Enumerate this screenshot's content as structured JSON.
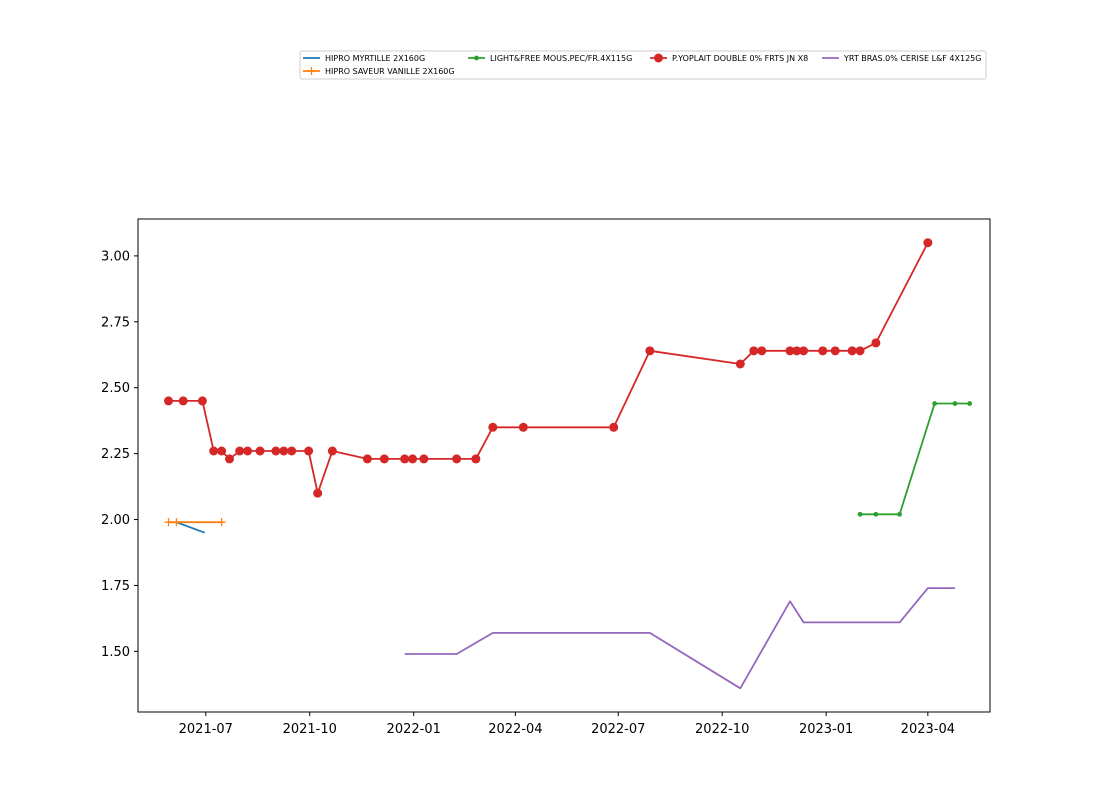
{
  "chart_data": {
    "type": "line",
    "title": "",
    "xlabel": "",
    "ylabel": "",
    "x_axis": {
      "type": "date",
      "range": [
        "2021-05-02",
        "2023-05-26"
      ],
      "ticks": [
        {
          "date": "2021-07-01",
          "label": "2021-07"
        },
        {
          "date": "2021-10-01",
          "label": "2021-10"
        },
        {
          "date": "2022-01-01",
          "label": "2022-01"
        },
        {
          "date": "2022-04-01",
          "label": "2022-04"
        },
        {
          "date": "2022-07-01",
          "label": "2022-07"
        },
        {
          "date": "2022-10-01",
          "label": "2022-10"
        },
        {
          "date": "2023-01-01",
          "label": "2023-01"
        },
        {
          "date": "2023-04-01",
          "label": "2023-04"
        }
      ]
    },
    "y_axis": {
      "range": [
        1.27,
        3.14
      ],
      "ticks": [
        {
          "value": 1.5,
          "label": "1.50"
        },
        {
          "value": 1.75,
          "label": "1.75"
        },
        {
          "value": 2.0,
          "label": "2.00"
        },
        {
          "value": 2.25,
          "label": "2.25"
        },
        {
          "value": 2.5,
          "label": "2.50"
        },
        {
          "value": 2.75,
          "label": "2.75"
        },
        {
          "value": 3.0,
          "label": "3.00"
        }
      ]
    },
    "grid": false,
    "legend_position": "top",
    "series": [
      {
        "name": "HIPRO MYRTILLE 2X160G",
        "color": "#1f77b4",
        "marker": "none",
        "points": [
          [
            "2021-06-05",
            1.99
          ],
          [
            "2021-06-30",
            1.95
          ]
        ]
      },
      {
        "name": "HIPRO SAVEUR VANILLE 2X160G",
        "color": "#ff7f0e",
        "marker": "plus",
        "points": [
          [
            "2021-05-29",
            1.99
          ],
          [
            "2021-06-05",
            1.99
          ],
          [
            "2021-07-15",
            1.99
          ]
        ]
      },
      {
        "name": "LIGHT&FREE MOUS.PEC/FR.4X115G",
        "color": "#2ca02c",
        "marker": "dot",
        "points": [
          [
            "2023-01-31",
            2.02
          ],
          [
            "2023-02-14",
            2.02
          ],
          [
            "2023-03-07",
            2.02
          ],
          [
            "2023-04-07",
            2.44
          ],
          [
            "2023-04-25",
            2.44
          ],
          [
            "2023-05-08",
            2.44
          ]
        ]
      },
      {
        "name": "P.YOPLAIT DOUBLE 0% FRTS JN X8",
        "color": "#d62728",
        "marker": "circle",
        "points": [
          [
            "2021-05-29",
            2.45
          ],
          [
            "2021-06-11",
            2.45
          ],
          [
            "2021-06-28",
            2.45
          ],
          [
            "2021-07-08",
            2.26
          ],
          [
            "2021-07-15",
            2.26
          ],
          [
            "2021-07-22",
            2.23
          ],
          [
            "2021-07-31",
            2.26
          ],
          [
            "2021-08-07",
            2.26
          ],
          [
            "2021-08-18",
            2.26
          ],
          [
            "2021-09-01",
            2.26
          ],
          [
            "2021-09-08",
            2.26
          ],
          [
            "2021-09-15",
            2.26
          ],
          [
            "2021-09-30",
            2.26
          ],
          [
            "2021-10-08",
            2.1
          ],
          [
            "2021-10-21",
            2.26
          ],
          [
            "2021-11-21",
            2.23
          ],
          [
            "2021-12-06",
            2.23
          ],
          [
            "2021-12-24",
            2.23
          ],
          [
            "2021-12-31",
            2.23
          ],
          [
            "2022-01-10",
            2.23
          ],
          [
            "2022-02-08",
            2.23
          ],
          [
            "2022-02-25",
            2.23
          ],
          [
            "2022-03-12",
            2.35
          ],
          [
            "2022-04-08",
            2.35
          ],
          [
            "2022-06-27",
            2.35
          ],
          [
            "2022-07-29",
            2.64
          ],
          [
            "2022-10-17",
            2.59
          ],
          [
            "2022-10-29",
            2.64
          ],
          [
            "2022-11-05",
            2.64
          ],
          [
            "2022-11-30",
            2.64
          ],
          [
            "2022-12-06",
            2.64
          ],
          [
            "2022-12-12",
            2.64
          ],
          [
            "2022-12-29",
            2.64
          ],
          [
            "2023-01-09",
            2.64
          ],
          [
            "2023-01-24",
            2.64
          ],
          [
            "2023-01-31",
            2.64
          ],
          [
            "2023-02-14",
            2.67
          ],
          [
            "2023-04-01",
            3.05
          ]
        ]
      },
      {
        "name": "YRT BRAS.0% CERISE L&F 4X125G",
        "color": "#9467bd",
        "marker": "none",
        "points": [
          [
            "2021-12-24",
            1.49
          ],
          [
            "2022-02-08",
            1.49
          ],
          [
            "2022-03-12",
            1.57
          ],
          [
            "2022-07-29",
            1.57
          ],
          [
            "2022-10-17",
            1.36
          ],
          [
            "2022-11-30",
            1.69
          ],
          [
            "2022-12-12",
            1.61
          ],
          [
            "2023-03-07",
            1.61
          ],
          [
            "2023-04-01",
            1.74
          ],
          [
            "2023-04-25",
            1.74
          ]
        ]
      }
    ]
  }
}
